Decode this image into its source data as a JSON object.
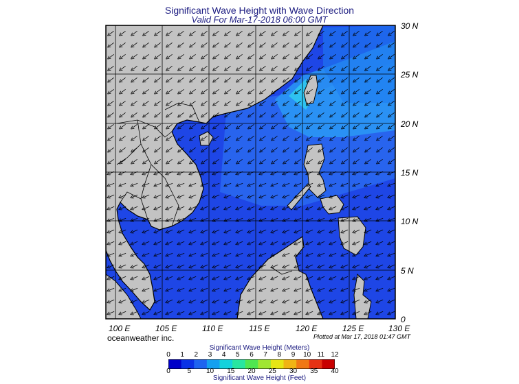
{
  "title": "Significant Wave Height with Wave Direction",
  "subtitle": "Valid For Mar-17-2018 06:00 GMT",
  "company": "oceanweather inc.",
  "plotted": "Plotted at Mar 17, 2018 01:47 GMT",
  "map": {
    "lon_range": [
      99,
      130
    ],
    "lat_range": [
      0,
      30
    ],
    "lat_labels": [
      "30 N",
      "25 N",
      "20 N",
      "15 N",
      "10 N",
      "5 N",
      "0"
    ],
    "lon_labels": [
      "100 E",
      "105 E",
      "110 E",
      "115 E",
      "120 E",
      "125 E",
      "130 E"
    ],
    "colors": {
      "land": "#c3c3c3",
      "ocean": "#1e46e6",
      "high_wave": "#2fc8f0"
    }
  },
  "colorbar": {
    "title_meters": "Significant Wave Height (Meters)",
    "title_feet": "Significant Wave Height (Feet)",
    "meters_ticks": [
      "0",
      "1",
      "2",
      "3",
      "4",
      "5",
      "6",
      "7",
      "8",
      "9",
      "10",
      "11",
      "12"
    ],
    "feet_ticks": [
      "0",
      "5",
      "10",
      "15",
      "20",
      "25",
      "30",
      "35",
      "40"
    ],
    "colors": [
      "#0000c8",
      "#0a32e6",
      "#1e64f0",
      "#14a0f0",
      "#14d2dc",
      "#28e6a0",
      "#50e650",
      "#a0e632",
      "#e6e614",
      "#f0b414",
      "#f07814",
      "#e63214",
      "#c80000"
    ]
  }
}
